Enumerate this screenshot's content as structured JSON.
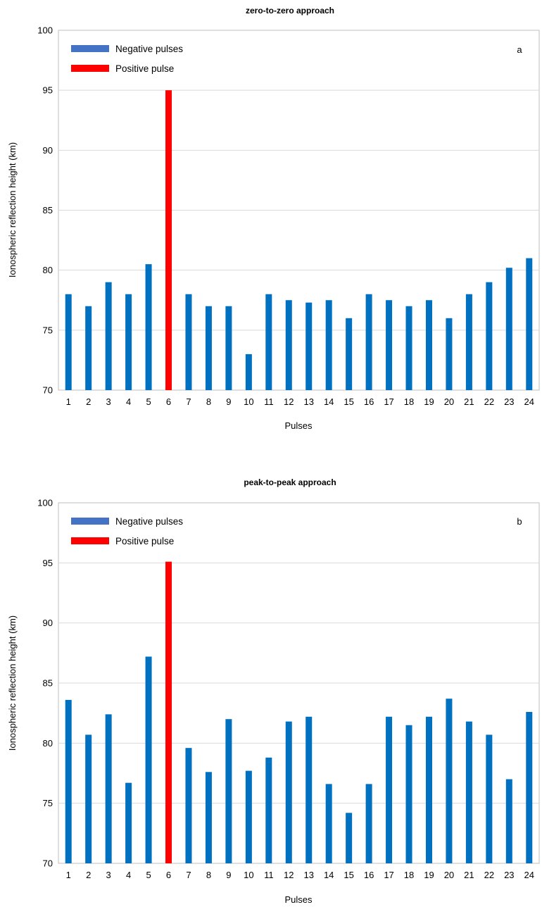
{
  "chart_data": [
    {
      "type": "bar",
      "title": "zero-to-zero approach",
      "panel_label": "a",
      "xlabel": "Pulses",
      "ylabel": "Ionospheric reflection height (km)",
      "ylim": [
        70,
        100
      ],
      "yticks": [
        70,
        75,
        80,
        85,
        90,
        95,
        100
      ],
      "grid": true,
      "legend_position": "top-left",
      "legend": [
        {
          "name": "Negative pulses",
          "color": "#4472c4"
        },
        {
          "name": "Positive pulse",
          "color": "#ff0000"
        }
      ],
      "categories": [
        "1",
        "2",
        "3",
        "4",
        "5",
        "6",
        "7",
        "8",
        "9",
        "10",
        "11",
        "12",
        "13",
        "14",
        "15",
        "16",
        "17",
        "18",
        "19",
        "20",
        "21",
        "22",
        "23",
        "24"
      ],
      "values": [
        78,
        77,
        79,
        78,
        80.5,
        95,
        78,
        77,
        77,
        73,
        78,
        77.5,
        77.3,
        77.5,
        76,
        78,
        77.5,
        77,
        77.5,
        76,
        78,
        79,
        80.2,
        81
      ],
      "positive_index": 5,
      "colors": {
        "negative": "#0070c0",
        "positive": "#ff0000"
      }
    },
    {
      "type": "bar",
      "title": "peak-to-peak approach",
      "panel_label": "b",
      "xlabel": "Pulses",
      "ylabel": "Ionospheric reflection height (km)",
      "ylim": [
        70,
        100
      ],
      "yticks": [
        70,
        75,
        80,
        85,
        90,
        95,
        100
      ],
      "grid": true,
      "legend_position": "top-left",
      "legend": [
        {
          "name": "Negative pulses",
          "color": "#4472c4"
        },
        {
          "name": "Positive pulse",
          "color": "#ff0000"
        }
      ],
      "categories": [
        "1",
        "2",
        "3",
        "4",
        "5",
        "6",
        "7",
        "8",
        "9",
        "10",
        "11",
        "12",
        "13",
        "14",
        "15",
        "16",
        "17",
        "18",
        "19",
        "20",
        "21",
        "22",
        "23",
        "24"
      ],
      "values": [
        83.6,
        80.7,
        82.4,
        76.7,
        87.2,
        95.1,
        79.6,
        77.6,
        82,
        77.7,
        78.8,
        81.8,
        82.2,
        76.6,
        74.2,
        76.6,
        82.2,
        81.5,
        82.2,
        83.7,
        81.8,
        80.7,
        77,
        82.6
      ],
      "positive_index": 5,
      "colors": {
        "negative": "#0070c0",
        "positive": "#ff0000"
      }
    }
  ]
}
